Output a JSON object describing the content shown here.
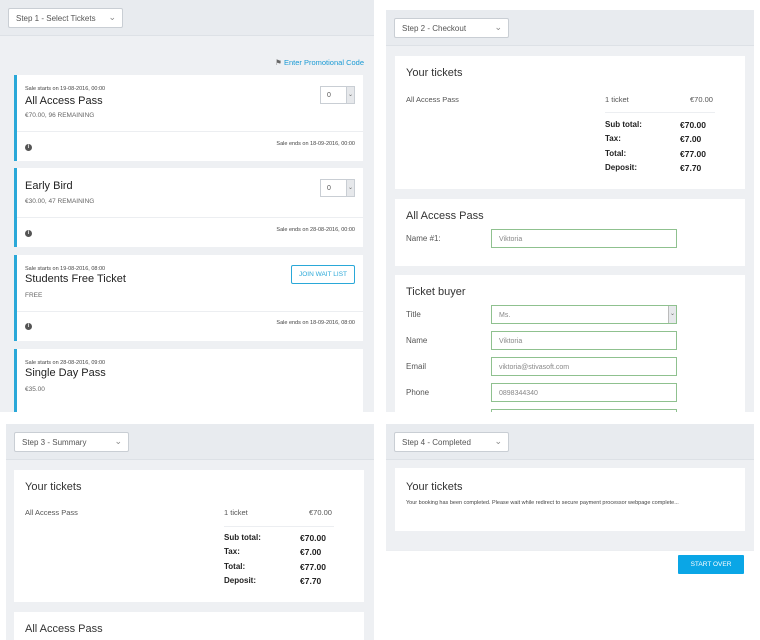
{
  "step1": {
    "select_label": "Step 1 - Select Tickets",
    "promo_link": "Enter Promotional Code",
    "tickets": [
      {
        "sale_start": "Sale starts on 19-08-2016, 00:00",
        "name": "All Access Pass",
        "price": "€70.00, 96 REMAINING",
        "qty": "0",
        "sale_end": "Sale ends on 18-09-2016, 00:00"
      },
      {
        "sale_start": "",
        "name": "Early Bird",
        "price": "€30.00, 47 REMAINING",
        "qty": "0",
        "sale_end": "Sale ends on 28-08-2016, 00:00"
      },
      {
        "sale_start": "Sale starts on 19-08-2016, 08:00",
        "name": "Students Free Ticket",
        "price": "FREE",
        "waitlist": "JOIN WAIT LIST",
        "sale_end": "Sale ends on 18-09-2016, 08:00"
      },
      {
        "sale_start": "Sale starts on 28-08-2016, 09:00",
        "name": "Single Day Pass",
        "price": "€35.00"
      }
    ]
  },
  "step2": {
    "select_label": "Step 2 - Checkout",
    "your_tickets_title": "Your tickets",
    "line_item": {
      "name": "All Access Pass",
      "qty": "1 ticket",
      "amount": "€70.00"
    },
    "summary": [
      {
        "label": "Sub total:",
        "value": "€70.00"
      },
      {
        "label": "Tax:",
        "value": "€7.00"
      },
      {
        "label": "Total:",
        "value": "€77.00"
      },
      {
        "label": "Deposit:",
        "value": "€7.70"
      }
    ],
    "attendee_title": "All Access Pass",
    "attendee_label": "Name #1:",
    "attendee_value": "Viktoria",
    "buyer_title": "Ticket buyer",
    "buyer_fields": [
      {
        "label": "Title",
        "value": "Ms."
      },
      {
        "label": "Name",
        "value": "Viktoria"
      },
      {
        "label": "Email",
        "value": "viktoria@stivasoft.com"
      },
      {
        "label": "Phone",
        "value": "0898344340"
      }
    ]
  },
  "step3": {
    "select_label": "Step 3 - Summary",
    "your_tickets_title": "Your tickets",
    "line_item": {
      "name": "All Access Pass",
      "qty": "1 ticket",
      "amount": "€70.00"
    },
    "summary": [
      {
        "label": "Sub total:",
        "value": "€70.00"
      },
      {
        "label": "Tax:",
        "value": "€7.00"
      },
      {
        "label": "Total:",
        "value": "€77.00"
      },
      {
        "label": "Deposit:",
        "value": "€7.70"
      }
    ],
    "attendee_title": "All Access Pass"
  },
  "step4": {
    "select_label": "Step 4 - Completed",
    "title": "Your tickets",
    "message": "Your booking has been completed. Please wait while redirect to secure payment processor webpage complete...",
    "start_over": "START OVER"
  },
  "colors": {
    "accent": "#2aa8d8",
    "button": "#0aa6e6",
    "panel_bg": "#eef0f3",
    "field_border": "#8fc18f"
  }
}
